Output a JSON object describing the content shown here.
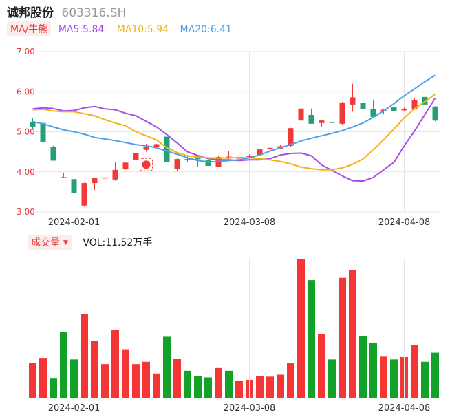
{
  "header": {
    "name": "诚邦股份",
    "code": "603316.SH"
  },
  "ma_bar": {
    "toggle_label": "MA/牛熊",
    "ma5": {
      "label": "MA5:5.84",
      "color": "#a64be8"
    },
    "ma10": {
      "label": "MA10:5.94",
      "color": "#f2b318"
    },
    "ma20": {
      "label": "MA20:6.41",
      "color": "#4ea0e8"
    }
  },
  "volume_bar": {
    "toggle_label": "成交量",
    "value_label": "VOL:11.52万手"
  },
  "colors": {
    "up": "#f03a3a",
    "down": "#22a07a",
    "vol_up": "#f53636",
    "vol_down": "#12a22a",
    "grid": "#e6e6e6",
    "axis_label": "#e03c3c"
  },
  "chart_data": [
    {
      "type": "candlestick",
      "title": "",
      "ylim": [
        3.0,
        7.0
      ],
      "yticks": [
        "7.00",
        "6.00",
        "5.00",
        "4.00",
        "3.00"
      ],
      "xticks": [
        "2024-02-01",
        "2024-03-08",
        "2024-04-08"
      ],
      "grid": true,
      "candles": [
        {
          "o": 5.25,
          "h": 5.35,
          "l": 5.05,
          "c": 5.13
        },
        {
          "o": 5.22,
          "h": 5.3,
          "l": 4.62,
          "c": 4.75
        },
        {
          "o": 4.63,
          "h": 4.65,
          "l": 4.28,
          "c": 4.28
        },
        {
          "o": 3.87,
          "h": 3.98,
          "l": 3.85,
          "c": 3.86
        },
        {
          "o": 3.82,
          "h": 3.88,
          "l": 3.48,
          "c": 3.48
        },
        {
          "o": 3.16,
          "h": 3.73,
          "l": 3.13,
          "c": 3.72
        },
        {
          "o": 3.72,
          "h": 3.85,
          "l": 3.55,
          "c": 3.85
        },
        {
          "o": 3.84,
          "h": 3.88,
          "l": 3.76,
          "c": 3.86
        },
        {
          "o": 3.81,
          "h": 4.25,
          "l": 3.78,
          "c": 4.05
        },
        {
          "o": 4.07,
          "h": 4.24,
          "l": 4.05,
          "c": 4.23
        },
        {
          "o": 4.29,
          "h": 4.48,
          "l": 4.28,
          "c": 4.47
        },
        {
          "o": 4.55,
          "h": 4.7,
          "l": 4.5,
          "c": 4.62
        },
        {
          "o": 4.62,
          "h": 4.7,
          "l": 4.6,
          "c": 4.69
        },
        {
          "o": 4.88,
          "h": 4.95,
          "l": 4.24,
          "c": 4.24
        },
        {
          "o": 4.08,
          "h": 4.33,
          "l": 4.03,
          "c": 4.32
        },
        {
          "o": 4.32,
          "h": 4.42,
          "l": 4.24,
          "c": 4.3
        },
        {
          "o": 4.34,
          "h": 4.4,
          "l": 4.13,
          "c": 4.33
        },
        {
          "o": 4.29,
          "h": 4.32,
          "l": 4.13,
          "c": 4.15
        },
        {
          "o": 4.13,
          "h": 4.4,
          "l": 4.12,
          "c": 4.37
        },
        {
          "o": 4.35,
          "h": 4.52,
          "l": 4.3,
          "c": 4.38
        },
        {
          "o": 4.33,
          "h": 4.42,
          "l": 4.3,
          "c": 4.37
        },
        {
          "o": 4.38,
          "h": 4.44,
          "l": 4.34,
          "c": 4.4
        },
        {
          "o": 4.42,
          "h": 4.57,
          "l": 4.42,
          "c": 4.56
        },
        {
          "o": 4.56,
          "h": 4.62,
          "l": 4.52,
          "c": 4.6
        },
        {
          "o": 4.58,
          "h": 4.67,
          "l": 4.56,
          "c": 4.64
        },
        {
          "o": 4.65,
          "h": 5.1,
          "l": 4.62,
          "c": 5.09
        },
        {
          "o": 5.28,
          "h": 5.62,
          "l": 5.28,
          "c": 5.58
        },
        {
          "o": 5.42,
          "h": 5.58,
          "l": 5.2,
          "c": 5.2
        },
        {
          "o": 5.22,
          "h": 5.3,
          "l": 5.13,
          "c": 5.28
        },
        {
          "o": 5.25,
          "h": 5.3,
          "l": 5.2,
          "c": 5.22
        },
        {
          "o": 5.2,
          "h": 5.75,
          "l": 5.18,
          "c": 5.73
        },
        {
          "o": 5.68,
          "h": 6.2,
          "l": 5.5,
          "c": 5.86
        },
        {
          "o": 5.72,
          "h": 5.83,
          "l": 5.55,
          "c": 5.57
        },
        {
          "o": 5.57,
          "h": 5.8,
          "l": 5.35,
          "c": 5.37
        },
        {
          "o": 5.54,
          "h": 5.58,
          "l": 5.44,
          "c": 5.55
        },
        {
          "o": 5.62,
          "h": 5.72,
          "l": 5.49,
          "c": 5.52
        },
        {
          "o": 5.55,
          "h": 5.6,
          "l": 5.52,
          "c": 5.56
        },
        {
          "o": 5.57,
          "h": 5.83,
          "l": 5.55,
          "c": 5.8
        },
        {
          "o": 5.87,
          "h": 5.9,
          "l": 5.65,
          "c": 5.68
        },
        {
          "o": 5.63,
          "h": 5.64,
          "l": 5.26,
          "c": 5.28
        }
      ],
      "series": [
        {
          "name": "MA5",
          "color": "#a64be8",
          "values": [
            5.57,
            5.6,
            5.58,
            5.52,
            5.53,
            5.6,
            5.63,
            5.57,
            5.55,
            5.46,
            5.4,
            5.26,
            5.12,
            4.93,
            4.72,
            4.5,
            4.41,
            4.33,
            4.3,
            4.3,
            4.28,
            4.3,
            4.3,
            4.33,
            4.42,
            4.46,
            4.47,
            4.4,
            4.17,
            4.04,
            3.9,
            3.78,
            3.77,
            3.86,
            4.05,
            4.24,
            4.65,
            5.02,
            5.43,
            5.84
          ]
        },
        {
          "name": "MA10",
          "color": "#f2b318",
          "values": [
            5.55,
            5.56,
            5.52,
            5.5,
            5.5,
            5.45,
            5.4,
            5.3,
            5.22,
            5.15,
            5.0,
            4.9,
            4.8,
            4.6,
            4.48,
            4.4,
            4.37,
            4.35,
            4.34,
            4.35,
            4.36,
            4.35,
            4.33,
            4.3,
            4.26,
            4.2,
            4.12,
            4.08,
            4.05,
            4.05,
            4.1,
            4.19,
            4.32,
            4.55,
            4.8,
            5.07,
            5.35,
            5.58,
            5.75,
            5.94
          ]
        },
        {
          "name": "MA20",
          "color": "#4ea0e8",
          "values": [
            5.25,
            5.2,
            5.12,
            5.05,
            5.0,
            4.94,
            4.86,
            4.82,
            4.78,
            4.73,
            4.68,
            4.65,
            4.6,
            4.52,
            4.44,
            4.35,
            4.28,
            4.25,
            4.26,
            4.28,
            4.3,
            4.35,
            4.42,
            4.52,
            4.6,
            4.68,
            4.77,
            4.84,
            4.9,
            4.96,
            5.03,
            5.12,
            5.22,
            5.36,
            5.52,
            5.7,
            5.9,
            6.07,
            6.25,
            6.41
          ]
        }
      ]
    },
    {
      "type": "bar",
      "title": "",
      "xticks": [
        "2024-02-01",
        "2024-03-08",
        "2024-04-08"
      ],
      "values": [
        8.8,
        10.2,
        4.9,
        16.8,
        9.8,
        21.4,
        14.6,
        8.6,
        17.3,
        12.4,
        8.6,
        9.2,
        6.2,
        15.6,
        10.0,
        6.9,
        5.6,
        5.2,
        7.6,
        6.9,
        4.3,
        4.6,
        5.5,
        5.4,
        5.9,
        8.8,
        35.4,
        30.1,
        16.3,
        9.8,
        30.7,
        32.6,
        15.8,
        14.1,
        10.5,
        9.8,
        10.4,
        13.4,
        9.2,
        11.52
      ],
      "up": [
        true,
        true,
        false,
        false,
        false,
        true,
        true,
        true,
        true,
        true,
        true,
        true,
        true,
        false,
        true,
        false,
        false,
        false,
        true,
        false,
        true,
        true,
        true,
        true,
        true,
        true,
        true,
        false,
        true,
        false,
        true,
        true,
        false,
        false,
        true,
        false,
        true,
        true,
        false,
        false
      ],
      "unit": "万手"
    }
  ]
}
